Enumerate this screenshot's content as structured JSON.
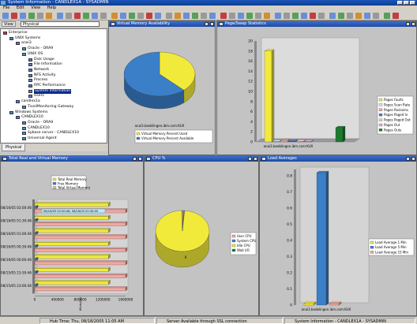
{
  "window": {
    "title": "System Information - CANDLEX1A - SYSADMIN"
  },
  "menu": {
    "items": [
      "File",
      "Edit",
      "View",
      "Help"
    ]
  },
  "navigator": {
    "view_label": "View",
    "view_value": "Physical",
    "tab": "Physical",
    "items": [
      {
        "label": "Enterprise",
        "depth": 0
      },
      {
        "label": "UNIX Systems",
        "depth": 1
      },
      {
        "label": "anai3",
        "depth": 2
      },
      {
        "label": "Oracle - ORA9",
        "depth": 3
      },
      {
        "label": "UNIX OS",
        "depth": 3
      },
      {
        "label": "Disk Usage",
        "depth": 4
      },
      {
        "label": "File Information",
        "depth": 4
      },
      {
        "label": "Network",
        "depth": 4
      },
      {
        "label": "NFS Activity",
        "depth": 4
      },
      {
        "label": "Process",
        "depth": 4
      },
      {
        "label": "RPC Performance",
        "depth": 4
      },
      {
        "label": "System Information",
        "depth": 4,
        "selected": true
      },
      {
        "label": "Users",
        "depth": 4
      },
      {
        "label": "candlex1a",
        "depth": 2
      },
      {
        "label": "TivoliMonitoring Gateway",
        "depth": 3
      },
      {
        "label": "Windows Systems",
        "depth": 1
      },
      {
        "label": "CANDLEX10",
        "depth": 2
      },
      {
        "label": "Oracle - ORA9",
        "depth": 3
      },
      {
        "label": "CANDLEX10",
        "depth": 3
      },
      {
        "label": "Sybase server - CANDLEX10",
        "depth": 3
      },
      {
        "label": "Universal Agent",
        "depth": 3
      }
    ]
  },
  "panels": {
    "virtual_memory": {
      "title": "Virtual Memory Availability"
    },
    "paging": {
      "title": "Page/Swap Statistics"
    },
    "real_virtual": {
      "title": "Total Real and Virtual Memory"
    },
    "cpu": {
      "title": "CPU %"
    },
    "load": {
      "title": "Load Averages"
    }
  },
  "chart_data": [
    {
      "type": "pie",
      "id": "virtual_memory",
      "labels": [
        "Virtual Memory Percent Used",
        "Virtual Memory Percent Available"
      ],
      "values": [
        38,
        62
      ],
      "colors": [
        "#f2ea3a",
        "#3a7fc8"
      ],
      "category_label": "anai3.boeblingen.ibm.com:KUX"
    },
    {
      "type": "bar",
      "id": "paging",
      "categories": [
        "anai3.boeblingen.ibm.com:KUX"
      ],
      "series": [
        {
          "name": "Pages Faults",
          "values": [
            18
          ],
          "color": "#f2ea3a"
        },
        {
          "name": "Pages Scan Rate",
          "values": [
            0.1
          ],
          "color": "#cfe0f7"
        },
        {
          "name": "Pages Reclaims",
          "values": [
            0.2
          ],
          "color": "#f0a8a0"
        },
        {
          "name": "Pages Paged In",
          "values": [
            0.1
          ],
          "color": "#4a7cc2"
        },
        {
          "name": "Pages Paged Out",
          "values": [
            0.05
          ],
          "color": "#f4c8c8"
        },
        {
          "name": "Pages Out",
          "values": [
            0.05
          ],
          "color": "#d8b0e0"
        },
        {
          "name": "Pages Outs",
          "values": [
            2.8
          ],
          "color": "#1c7a30"
        }
      ],
      "ylim": [
        0,
        20
      ],
      "yticks": [
        0,
        2,
        4,
        6,
        8,
        10,
        12,
        14,
        16,
        18,
        20
      ]
    },
    {
      "type": "bar",
      "id": "real_virtual",
      "orientation": "horizontal",
      "categories": [
        "08/16/05 02:00:46",
        "08/16/05 01:30:46",
        "08/16/05 01:00:46",
        "08/16/05 00:30:46",
        "08/16/05 00:00:46",
        "08/15/05 23:30:46",
        "08/15/05 23:00:46"
      ],
      "series": [
        {
          "name": "Total Real Memory",
          "values": [
            1300000,
            1300000,
            1300000,
            1300000,
            1300000,
            1300000,
            1300000
          ],
          "color": "#f2ea3a"
        },
        {
          "name": "Free Memory",
          "values": [
            30000,
            30000,
            30000,
            30000,
            30000,
            30000,
            30000
          ],
          "color": "#3a7fc8"
        },
        {
          "name": "Total Virtual Memory",
          "values": [
            1600000,
            1600000,
            1600000,
            1600000,
            1600000,
            1600000,
            1600000
          ],
          "color": "#f2a8a0"
        }
      ],
      "xlim": [
        0,
        1600000
      ],
      "xticks": [
        "0",
        "400000",
        "800000",
        "1200000",
        "1600000"
      ],
      "xlabel": "Kilobytes",
      "tooltip": "08/16/05 02:00:46; 08/16/05 02:30:00"
    },
    {
      "type": "pie",
      "id": "cpu",
      "labels": [
        "User CPU",
        "System CPU",
        "Idle CPU",
        "Wait I/O"
      ],
      "values": [
        0.8,
        0.5,
        98.5,
        0.2
      ],
      "colors": [
        "#f0a8a0",
        "#3a7fc8",
        "#f2ea3a",
        "#1c7a30"
      ],
      "category_label": "0"
    },
    {
      "type": "bar",
      "id": "load",
      "categories": [
        "anai3.boeblingen.ibm.com:KUX"
      ],
      "series": [
        {
          "name": "Load Average 1 Min",
          "values": [
            0.01
          ],
          "color": "#f2ea3a"
        },
        {
          "name": "Load Average 5 Min",
          "values": [
            0.82
          ],
          "color": "#3a7fc8"
        },
        {
          "name": "Load Average 15 Min",
          "values": [
            0.01
          ],
          "color": "#f0a8a0"
        }
      ],
      "ylim": [
        0,
        0.84
      ],
      "yticks": [
        "0",
        "0.1",
        "0.2",
        "0.3",
        "0.4",
        "0.5",
        "0.6",
        "0.7",
        "0.8"
      ]
    }
  ],
  "status": {
    "hub_time": "Hub Time: Thu, 08/18/2005 11:05 AM",
    "server": "Server Available through SSL connection",
    "workspace": "System Information - CANDLEX1A - SYSADMIN"
  }
}
